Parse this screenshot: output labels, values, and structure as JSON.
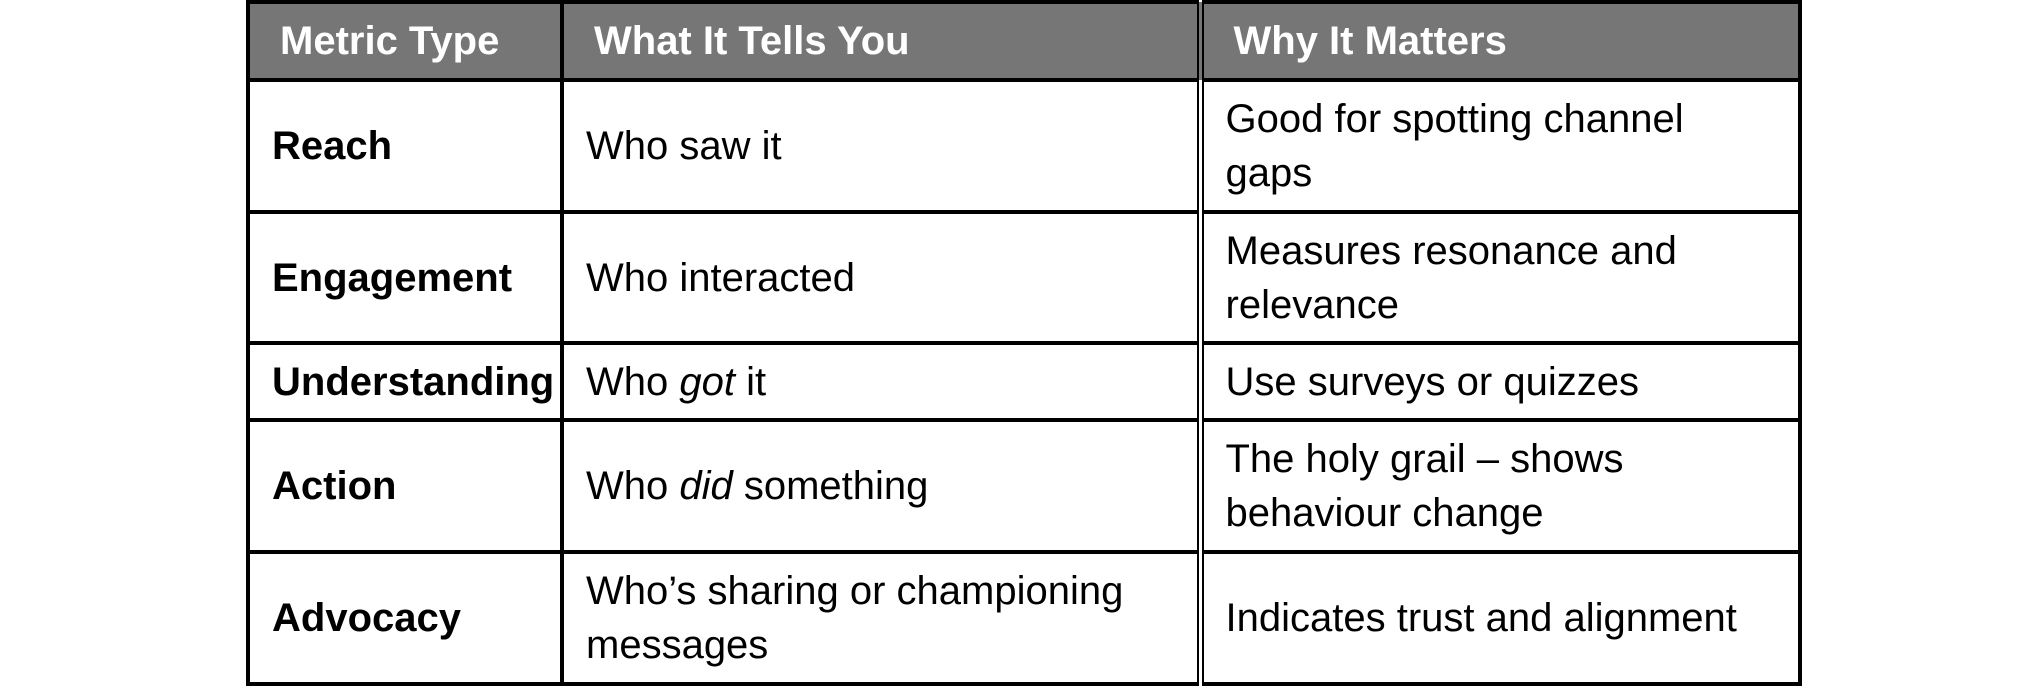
{
  "table": {
    "headers": [
      "Metric Type",
      "What It Tells You",
      "Why It Matters"
    ],
    "rows": [
      {
        "metric": "Reach",
        "tells": {
          "before": "Who saw it",
          "em": "",
          "after": ""
        },
        "matters": "Good for spotting channel gaps"
      },
      {
        "metric": "Engagement",
        "tells": {
          "before": "Who interacted",
          "em": "",
          "after": ""
        },
        "matters": "Measures resonance and relevance"
      },
      {
        "metric": "Understanding",
        "tells": {
          "before": "Who ",
          "em": "got",
          "after": " it"
        },
        "matters": "Use surveys or quizzes"
      },
      {
        "metric": "Action",
        "tells": {
          "before": "Who ",
          "em": "did",
          "after": " something"
        },
        "matters": "The holy grail – shows behaviour change"
      },
      {
        "metric": "Advocacy",
        "tells": {
          "before": "Who’s sharing or championing messages",
          "em": "",
          "after": ""
        },
        "matters": "Indicates trust and alignment"
      }
    ]
  },
  "colors": {
    "header_bg": "#767676",
    "header_text": "#ffffff",
    "border": "#000000"
  }
}
